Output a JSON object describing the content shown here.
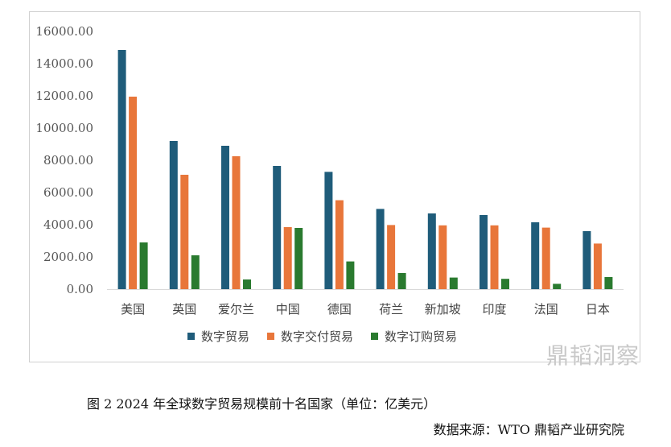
{
  "chart_data": {
    "type": "bar",
    "categories": [
      "美国",
      "英国",
      "爱尔兰",
      "中国",
      "德国",
      "荷兰",
      "新加坡",
      "印度",
      "法国",
      "日本"
    ],
    "series": [
      {
        "name": "数字贸易",
        "color": "#1f5c7a",
        "values": [
          14850,
          9200,
          8900,
          7650,
          7280,
          4980,
          4700,
          4600,
          4150,
          3600
        ]
      },
      {
        "name": "数字交付贸易",
        "color": "#e8763a",
        "values": [
          11950,
          7100,
          8250,
          3850,
          5520,
          3980,
          3960,
          3960,
          3820,
          2830
        ]
      },
      {
        "name": "数字订购贸易",
        "color": "#2a7a2f",
        "values": [
          2900,
          2100,
          600,
          3800,
          1720,
          1000,
          720,
          640,
          330,
          750
        ]
      }
    ],
    "yticks": [
      "0.00",
      "2000.00",
      "4000.00",
      "6000.00",
      "8000.00",
      "10000.00",
      "12000.00",
      "14000.00",
      "16000.00"
    ],
    "ylim": [
      0,
      16000
    ],
    "legend_position": "bottom",
    "grid": false
  },
  "watermark": "鼎韬洞察",
  "caption": "图 2 2024 年全球数字贸易规模前十名国家（单位：亿美元）",
  "source": "数据来源：WTO 鼎韬产业研究院"
}
